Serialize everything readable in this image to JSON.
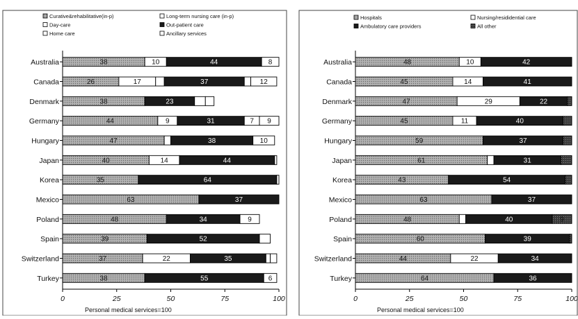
{
  "chart_data": [
    {
      "type": "bar",
      "stacked": true,
      "orientation": "horizontal",
      "title": "",
      "xlabel": "Personal medical services=100",
      "ylabel": "",
      "xlim": [
        0,
        100
      ],
      "xticks": [
        0,
        25,
        50,
        75,
        100
      ],
      "xtick_labels": [
        "0",
        "25",
        "50",
        "75",
        "100"
      ],
      "grid": false,
      "legend_position": "top",
      "categories": [
        "Australia",
        "Canada",
        "Denmark",
        "Germany",
        "Hungary",
        "Japan",
        "Korea",
        "Mexico",
        "Poland",
        "Spain",
        "Switzerland",
        "Turkey"
      ],
      "series": [
        {
          "name": "Curative&rehabilitative(in-p)",
          "color": "#9a9a9a",
          "pattern": "dots",
          "values": [
            38,
            26,
            38,
            44,
            47,
            40,
            35,
            63,
            48,
            39,
            37,
            38
          ],
          "labels": [
            "38",
            "26",
            "38",
            "44",
            "47",
            "40",
            "35",
            "63",
            "48",
            "39",
            "37",
            "38"
          ]
        },
        {
          "name": "Long-term nursing care (in-p)",
          "color": "#ffffff",
          "pattern": "none",
          "values": [
            10,
            17,
            0,
            9,
            3,
            14,
            0,
            0,
            0,
            0,
            22,
            0
          ],
          "labels": [
            "10",
            "17",
            "",
            "9",
            "",
            "14",
            "",
            "",
            "",
            "",
            "22",
            ""
          ]
        },
        {
          "name": "Day-care",
          "color": "#ffffff",
          "pattern": "none",
          "values": [
            0,
            4,
            0,
            0,
            0,
            0,
            0,
            0,
            0,
            0,
            0,
            0
          ],
          "labels": [
            "",
            "",
            "",
            "",
            "",
            "",
            "",
            "",
            "",
            "",
            "",
            ""
          ]
        },
        {
          "name": "Out-patient care",
          "color": "#1a1a1a",
          "pattern": "none",
          "values": [
            44,
            37,
            23,
            31,
            38,
            44,
            64,
            37,
            34,
            52,
            35,
            55
          ],
          "labels": [
            "44",
            "37",
            "23",
            "31",
            "38",
            "44",
            "64",
            "37",
            "34",
            "52",
            "35",
            "55"
          ]
        },
        {
          "name": "Home care",
          "color": "#ffffff",
          "pattern": "none",
          "values": [
            0,
            3,
            5,
            7,
            0,
            0,
            0,
            0,
            0,
            0,
            2,
            0
          ],
          "labels": [
            "",
            "",
            "",
            "7",
            "",
            "",
            "",
            "",
            "",
            "",
            "",
            ""
          ]
        },
        {
          "name": "Ancillary services",
          "color": "#ffffff",
          "pattern": "none",
          "values": [
            8,
            12,
            4,
            9,
            10,
            1,
            1,
            0,
            9,
            5,
            3,
            6
          ],
          "labels": [
            "8",
            "12",
            "",
            "9",
            "10",
            "",
            "",
            "",
            "9",
            "",
            "",
            "6"
          ]
        }
      ],
      "legend_entries": [
        "Curative&rehabilitative(in-p)",
        "Long-term nursing care (in-p)",
        "Day-care",
        "Out-patient care",
        "Home care",
        "Ancillary services"
      ]
    },
    {
      "type": "bar",
      "stacked": true,
      "orientation": "horizontal",
      "title": "",
      "xlabel": "Personal medical services=100",
      "ylabel": "",
      "xlim": [
        0,
        100
      ],
      "xticks": [
        0,
        25,
        50,
        75,
        100
      ],
      "xtick_labels": [
        "0",
        "25",
        "50",
        "75",
        "100"
      ],
      "grid": false,
      "legend_position": "top",
      "categories": [
        "Australia",
        "Canada",
        "Denmark",
        "Germany",
        "Hungary",
        "Japan",
        "Korea",
        "Mexico",
        "Poland",
        "Spain",
        "Switzerland",
        "Turkey"
      ],
      "series": [
        {
          "name": "Hospitals",
          "color": "#9a9a9a",
          "pattern": "dots",
          "values": [
            48,
            45,
            47,
            45,
            59,
            61,
            43,
            63,
            48,
            60,
            44,
            64
          ],
          "labels": [
            "48",
            "45",
            "47",
            "45",
            "59",
            "61",
            "43",
            "63",
            "48",
            "60",
            "44",
            "64"
          ]
        },
        {
          "name": "Nursing/resididential care",
          "color": "#ffffff",
          "pattern": "none",
          "values": [
            10,
            14,
            29,
            11,
            0,
            3,
            0,
            0,
            3,
            0,
            22,
            0
          ],
          "labels": [
            "10",
            "14",
            "29",
            "11",
            "",
            "",
            "",
            "",
            "",
            "",
            "22",
            ""
          ]
        },
        {
          "name": "Ambulatory care providers",
          "color": "#1a1a1a",
          "pattern": "none",
          "values": [
            42,
            41,
            22,
            40,
            37,
            31,
            54,
            37,
            40,
            39,
            34,
            36
          ],
          "labels": [
            "42",
            "41",
            "22",
            "40",
            "37",
            "31",
            "54",
            "37",
            "40",
            "39",
            "34",
            "36"
          ]
        },
        {
          "name": "All other",
          "color": "#555555",
          "pattern": "dark",
          "values": [
            0,
            0,
            2,
            4,
            4,
            5,
            3,
            0,
            9,
            1,
            0,
            0
          ],
          "labels": [
            "",
            "",
            "",
            "",
            "",
            "",
            "",
            "",
            "9",
            "",
            "",
            ""
          ]
        }
      ],
      "legend_entries": [
        "Hospitals",
        "Nursing/resididential care",
        "Ambulatory care providers",
        "All other"
      ]
    }
  ]
}
